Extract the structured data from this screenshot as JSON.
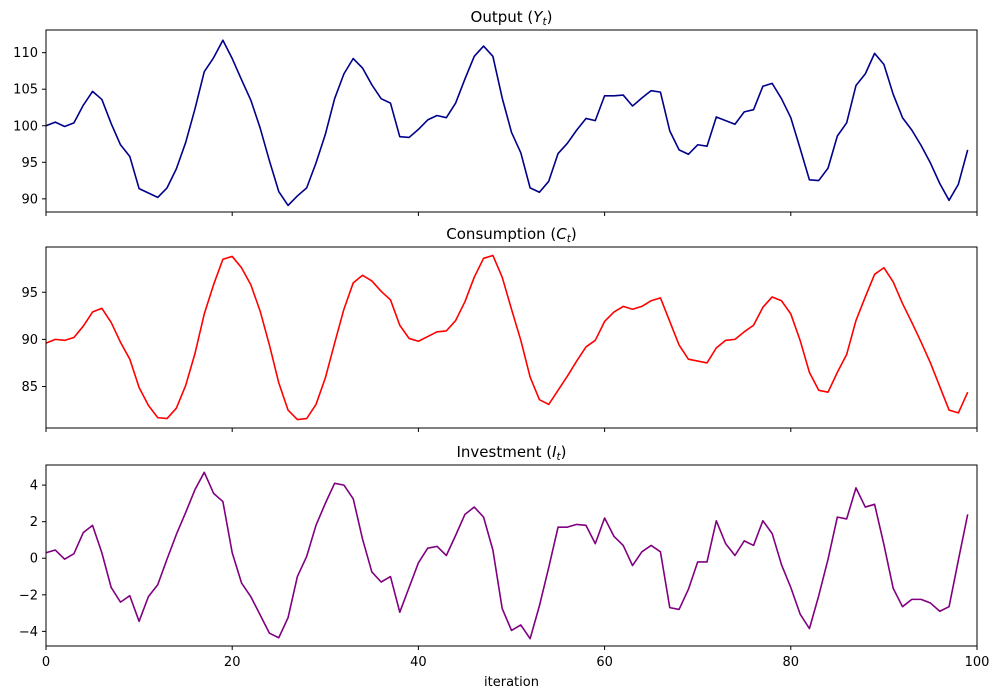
{
  "chart_data": [
    {
      "type": "line",
      "title": "Output (Y_t)",
      "title_main": "Output (",
      "title_var": "Y",
      "title_sub": "t",
      "title_end": ")",
      "color": "#00008b",
      "xlim": [
        0,
        100
      ],
      "ylim": [
        88.2,
        113.1
      ],
      "yticks": [
        90,
        95,
        100,
        105,
        110
      ],
      "xticks": [
        0,
        20,
        40,
        60,
        80,
        100
      ],
      "show_xticklabels": false,
      "values": [
        100.0,
        100.5,
        99.9,
        100.4,
        102.8,
        104.7,
        103.6,
        100.3,
        97.4,
        95.8,
        91.4,
        90.8,
        90.2,
        91.5,
        94.1,
        97.7,
        102.3,
        107.4,
        109.3,
        111.7,
        109.2,
        106.3,
        103.5,
        99.7,
        95.2,
        91.0,
        89.1,
        90.4,
        91.5,
        94.9,
        98.8,
        103.7,
        107.1,
        109.2,
        107.9,
        105.6,
        103.7,
        103.1,
        98.5,
        98.4,
        99.5,
        100.8,
        101.4,
        101.1,
        103.1,
        106.4,
        109.5,
        110.9,
        109.5,
        103.8,
        99.1,
        96.3,
        91.5,
        90.9,
        92.4,
        96.2,
        97.6,
        99.4,
        101.0,
        100.7,
        104.1,
        104.1,
        104.2,
        102.7,
        103.8,
        104.8,
        104.6,
        99.3,
        96.7,
        96.1,
        97.4,
        97.2,
        101.2,
        100.7,
        100.2,
        101.9,
        102.2,
        105.4,
        105.8,
        103.7,
        101.1,
        96.9,
        92.6,
        92.5,
        94.2,
        98.6,
        100.4,
        105.5,
        107.1,
        109.9,
        108.4,
        104.3,
        101.1,
        99.4,
        97.3,
        94.9,
        92.1,
        89.8,
        92.0,
        96.7
      ]
    },
    {
      "type": "line",
      "title": "Consumption (C_t)",
      "title_main": "Consumption (",
      "title_var": "C",
      "title_sub": "t",
      "title_end": ")",
      "color": "#ff0000",
      "xlim": [
        0,
        100
      ],
      "ylim": [
        80.6,
        99.8
      ],
      "yticks": [
        85,
        90,
        95
      ],
      "xticks": [
        0,
        20,
        40,
        60,
        80,
        100
      ],
      "show_xticklabels": false,
      "values": [
        89.6,
        90.0,
        89.9,
        90.2,
        91.4,
        92.9,
        93.3,
        91.8,
        89.7,
        87.9,
        84.9,
        83.0,
        81.7,
        81.6,
        82.7,
        85.1,
        88.5,
        92.7,
        95.8,
        98.5,
        98.8,
        97.6,
        95.8,
        93.0,
        89.4,
        85.4,
        82.5,
        81.5,
        81.6,
        83.1,
        85.9,
        89.6,
        93.2,
        96.0,
        96.8,
        96.2,
        95.1,
        94.2,
        91.5,
        90.1,
        89.8,
        90.3,
        90.8,
        90.9,
        92.0,
        94.0,
        96.6,
        98.6,
        98.9,
        96.6,
        93.2,
        89.9,
        86.0,
        83.6,
        83.1,
        84.6,
        86.1,
        87.7,
        89.2,
        89.9,
        91.9,
        92.9,
        93.5,
        93.2,
        93.5,
        94.1,
        94.4,
        91.9,
        89.4,
        87.9,
        87.7,
        87.5,
        89.1,
        89.9,
        90.0,
        90.8,
        91.5,
        93.4,
        94.5,
        94.1,
        92.7,
        89.9,
        86.5,
        84.6,
        84.4,
        86.5,
        88.4,
        92.0,
        94.5,
        96.9,
        97.6,
        96.1,
        93.8,
        91.8,
        89.7,
        87.5,
        85.0,
        82.5,
        82.2,
        84.4
      ]
    },
    {
      "type": "line",
      "title": "Investment (I_t)",
      "title_main": "Investment (",
      "title_var": "I",
      "title_sub": "t",
      "title_end": ")",
      "color": "#800080",
      "xlim": [
        0,
        100
      ],
      "ylim": [
        -4.8,
        5.1
      ],
      "yticks": [
        -4,
        -2,
        0,
        2,
        4
      ],
      "xticks": [
        0,
        20,
        40,
        60,
        80,
        100
      ],
      "show_xticklabels": true,
      "xlabel": "iteration",
      "values": [
        0.3,
        0.45,
        -0.05,
        0.25,
        1.4,
        1.8,
        0.3,
        -1.6,
        -2.4,
        -2.05,
        -3.45,
        -2.1,
        -1.45,
        -0.05,
        1.3,
        2.5,
        3.75,
        4.7,
        3.55,
        3.1,
        0.3,
        -1.35,
        -2.1,
        -3.1,
        -4.1,
        -4.35,
        -3.25,
        -1.0,
        0.1,
        1.8,
        3.0,
        4.1,
        4.0,
        3.25,
        1.05,
        -0.75,
        -1.3,
        -1.0,
        -2.95,
        -1.6,
        -0.25,
        0.55,
        0.65,
        0.15,
        1.25,
        2.4,
        2.8,
        2.25,
        0.45,
        -2.75,
        -3.95,
        -3.65,
        -4.4,
        -2.6,
        -0.5,
        1.7,
        1.7,
        1.85,
        1.8,
        0.8,
        2.2,
        1.2,
        0.7,
        -0.4,
        0.35,
        0.7,
        0.35,
        -2.7,
        -2.8,
        -1.7,
        -0.2,
        -0.2,
        2.05,
        0.8,
        0.15,
        0.95,
        0.7,
        2.05,
        1.35,
        -0.35,
        -1.6,
        -3.05,
        -3.85,
        -2.05,
        -0.05,
        2.25,
        2.15,
        3.85,
        2.8,
        2.95,
        0.75,
        -1.65,
        -2.65,
        -2.25,
        -2.25,
        -2.45,
        -2.9,
        -2.65,
        -0.1,
        2.4
      ]
    }
  ]
}
